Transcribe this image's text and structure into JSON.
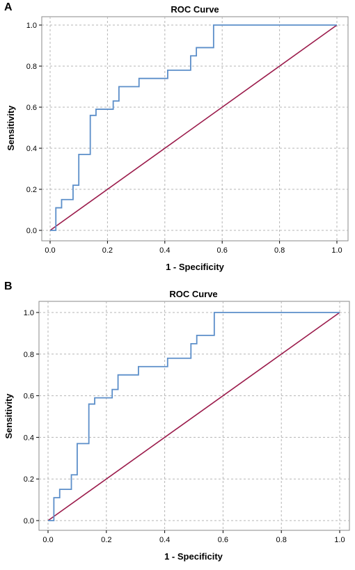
{
  "colors": {
    "roc_line": "#5b8ec9",
    "reference_line": "#9b1b4b",
    "grid": "#b5b5b5",
    "frame": "#8a8a8a",
    "background": "#ffffff"
  },
  "panels": [
    {
      "label": "A",
      "title": "ROC Curve",
      "xlabel": "1 - Specificity",
      "ylabel": "Sensitivity"
    },
    {
      "label": "B",
      "title": "ROC Curve",
      "xlabel": "1 - Specificity",
      "ylabel": "Sensitivity"
    }
  ],
  "chart_data": [
    {
      "type": "line",
      "title": "ROC Curve",
      "xlabel": "1 - Specificity",
      "ylabel": "Sensitivity",
      "xlim": [
        0,
        1
      ],
      "ylim": [
        0,
        1
      ],
      "xticks": [
        "0.0",
        "0.2",
        "0.4",
        "0.6",
        "0.8",
        "1.0"
      ],
      "yticks": [
        "0.0",
        "0.2",
        "0.4",
        "0.6",
        "0.8",
        "1.0"
      ],
      "grid": true,
      "series": [
        {
          "x": [
            0.0,
            0.02,
            0.02,
            0.04,
            0.04,
            0.08,
            0.08,
            0.1,
            0.1,
            0.14,
            0.14,
            0.16,
            0.16,
            0.22,
            0.22,
            0.24,
            0.24,
            0.31,
            0.31,
            0.41,
            0.41,
            0.49,
            0.49,
            0.51,
            0.51,
            0.57,
            0.57,
            1.0
          ],
          "y": [
            0.0,
            0.0,
            0.11,
            0.11,
            0.15,
            0.15,
            0.22,
            0.22,
            0.37,
            0.37,
            0.56,
            0.56,
            0.59,
            0.59,
            0.63,
            0.63,
            0.7,
            0.7,
            0.74,
            0.74,
            0.78,
            0.78,
            0.85,
            0.85,
            0.89,
            0.89,
            1.0,
            1.0
          ]
        },
        {
          "x": [
            0.0,
            1.0
          ],
          "y": [
            0.0,
            1.0
          ]
        }
      ]
    },
    {
      "type": "line",
      "title": "ROC Curve",
      "xlabel": "1 - Specificity",
      "ylabel": "Sensitivity",
      "xlim": [
        0,
        1
      ],
      "ylim": [
        0,
        1
      ],
      "xticks": [
        "0.0",
        "0.2",
        "0.4",
        "0.6",
        "0.8",
        "1.0"
      ],
      "yticks": [
        "0.0",
        "0.2",
        "0.4",
        "0.6",
        "0.8",
        "1.0"
      ],
      "grid": true,
      "series": [
        {
          "x": [
            0.0,
            0.02,
            0.02,
            0.04,
            0.04,
            0.08,
            0.08,
            0.1,
            0.1,
            0.14,
            0.14,
            0.16,
            0.16,
            0.22,
            0.22,
            0.24,
            0.24,
            0.31,
            0.31,
            0.41,
            0.41,
            0.49,
            0.49,
            0.51,
            0.51,
            0.57,
            0.57,
            1.0
          ],
          "y": [
            0.0,
            0.0,
            0.11,
            0.11,
            0.15,
            0.15,
            0.22,
            0.22,
            0.37,
            0.37,
            0.56,
            0.56,
            0.59,
            0.59,
            0.63,
            0.63,
            0.7,
            0.7,
            0.74,
            0.74,
            0.78,
            0.78,
            0.85,
            0.85,
            0.89,
            0.89,
            1.0,
            1.0
          ]
        },
        {
          "x": [
            0.0,
            1.0
          ],
          "y": [
            0.0,
            1.0
          ]
        }
      ]
    }
  ]
}
